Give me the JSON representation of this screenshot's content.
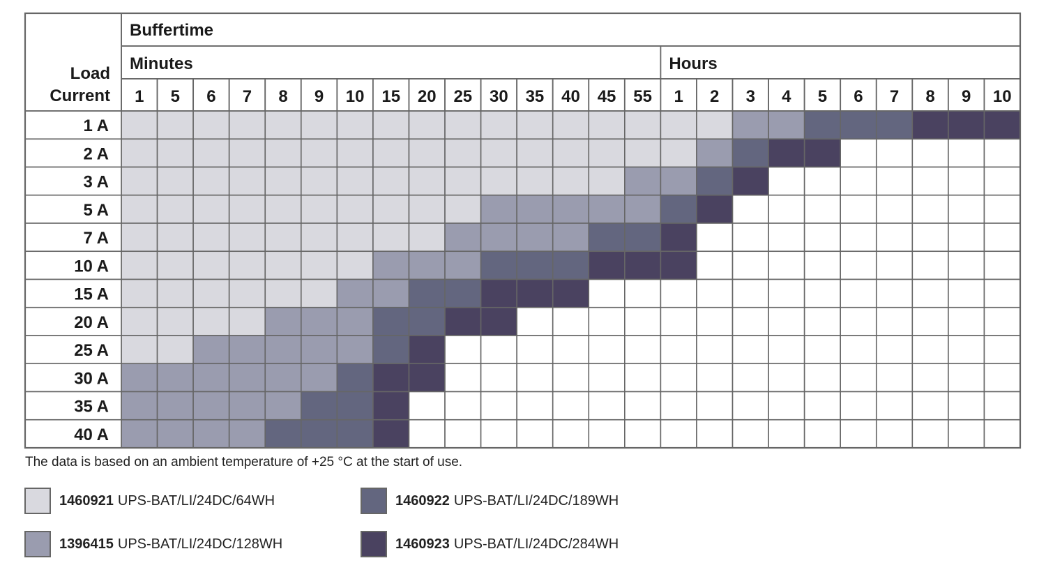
{
  "chart_data": {
    "type": "table",
    "title": "Buffertime",
    "row_header": [
      "Load",
      "Current"
    ],
    "groups": [
      {
        "label": "Minutes",
        "columns": [
          "1",
          "5",
          "6",
          "7",
          "8",
          "9",
          "10",
          "15",
          "20",
          "25",
          "30",
          "35",
          "40",
          "45",
          "55"
        ]
      },
      {
        "label": "Hours",
        "columns": [
          "1",
          "2",
          "3",
          "4",
          "5",
          "6",
          "7",
          "8",
          "9",
          "10"
        ]
      }
    ],
    "rows": [
      {
        "label": "1 A",
        "cells": [
          1,
          1,
          1,
          1,
          1,
          1,
          1,
          1,
          1,
          1,
          1,
          1,
          1,
          1,
          1,
          1,
          1,
          2,
          2,
          3,
          3,
          3,
          4,
          4,
          4
        ]
      },
      {
        "label": "2 A",
        "cells": [
          1,
          1,
          1,
          1,
          1,
          1,
          1,
          1,
          1,
          1,
          1,
          1,
          1,
          1,
          1,
          1,
          2,
          3,
          4,
          4,
          0,
          0,
          0,
          0,
          0
        ]
      },
      {
        "label": "3 A",
        "cells": [
          1,
          1,
          1,
          1,
          1,
          1,
          1,
          1,
          1,
          1,
          1,
          1,
          1,
          1,
          2,
          2,
          3,
          4,
          0,
          0,
          0,
          0,
          0,
          0,
          0
        ]
      },
      {
        "label": "5 A",
        "cells": [
          1,
          1,
          1,
          1,
          1,
          1,
          1,
          1,
          1,
          1,
          2,
          2,
          2,
          2,
          2,
          3,
          4,
          0,
          0,
          0,
          0,
          0,
          0,
          0,
          0
        ]
      },
      {
        "label": "7 A",
        "cells": [
          1,
          1,
          1,
          1,
          1,
          1,
          1,
          1,
          1,
          2,
          2,
          2,
          2,
          3,
          3,
          4,
          0,
          0,
          0,
          0,
          0,
          0,
          0,
          0,
          0
        ]
      },
      {
        "label": "10 A",
        "cells": [
          1,
          1,
          1,
          1,
          1,
          1,
          1,
          2,
          2,
          2,
          3,
          3,
          3,
          4,
          4,
          4,
          0,
          0,
          0,
          0,
          0,
          0,
          0,
          0,
          0
        ]
      },
      {
        "label": "15 A",
        "cells": [
          1,
          1,
          1,
          1,
          1,
          1,
          2,
          2,
          3,
          3,
          4,
          4,
          4,
          0,
          0,
          0,
          0,
          0,
          0,
          0,
          0,
          0,
          0,
          0,
          0
        ]
      },
      {
        "label": "20 A",
        "cells": [
          1,
          1,
          1,
          1,
          2,
          2,
          2,
          3,
          3,
          4,
          4,
          0,
          0,
          0,
          0,
          0,
          0,
          0,
          0,
          0,
          0,
          0,
          0,
          0,
          0
        ]
      },
      {
        "label": "25 A",
        "cells": [
          1,
          1,
          2,
          2,
          2,
          2,
          2,
          3,
          4,
          0,
          0,
          0,
          0,
          0,
          0,
          0,
          0,
          0,
          0,
          0,
          0,
          0,
          0,
          0,
          0
        ]
      },
      {
        "label": "30 A",
        "cells": [
          2,
          2,
          2,
          2,
          2,
          2,
          3,
          4,
          4,
          0,
          0,
          0,
          0,
          0,
          0,
          0,
          0,
          0,
          0,
          0,
          0,
          0,
          0,
          0,
          0
        ]
      },
      {
        "label": "35 A",
        "cells": [
          2,
          2,
          2,
          2,
          2,
          3,
          3,
          4,
          0,
          0,
          0,
          0,
          0,
          0,
          0,
          0,
          0,
          0,
          0,
          0,
          0,
          0,
          0,
          0,
          0
        ]
      },
      {
        "label": "40 A",
        "cells": [
          2,
          2,
          2,
          2,
          3,
          3,
          3,
          4,
          0,
          0,
          0,
          0,
          0,
          0,
          0,
          0,
          0,
          0,
          0,
          0,
          0,
          0,
          0,
          0,
          0
        ]
      }
    ],
    "categories": [
      {
        "level": 0,
        "color": "#ffffff"
      },
      {
        "level": 1,
        "code": "1460921",
        "name": "UPS-BAT/LI/24DC/64WH",
        "color": "#d9d9df"
      },
      {
        "level": 2,
        "code": "1396415",
        "name": "UPS-BAT/LI/24DC/128WH",
        "color": "#9a9caf"
      },
      {
        "level": 3,
        "code": "1460922",
        "name": "UPS-BAT/LI/24DC/189WH",
        "color": "#63667f"
      },
      {
        "level": 4,
        "code": "1460923",
        "name": "UPS-BAT/LI/24DC/284WH",
        "color": "#4a4260"
      }
    ],
    "note": "The data is based on an ambient temperature of +25 °C at the start of use."
  },
  "legend": [
    {
      "code": "1460921",
      "name": "UPS-BAT/LI/24DC/64WH",
      "color": "#d9d9df"
    },
    {
      "code": "1460922",
      "name": "UPS-BAT/LI/24DC/189WH",
      "color": "#63667f"
    },
    {
      "code": "1396415",
      "name": "UPS-BAT/LI/24DC/128WH",
      "color": "#9a9caf"
    },
    {
      "code": "1460923",
      "name": "UPS-BAT/LI/24DC/284WH",
      "color": "#4a4260"
    }
  ]
}
